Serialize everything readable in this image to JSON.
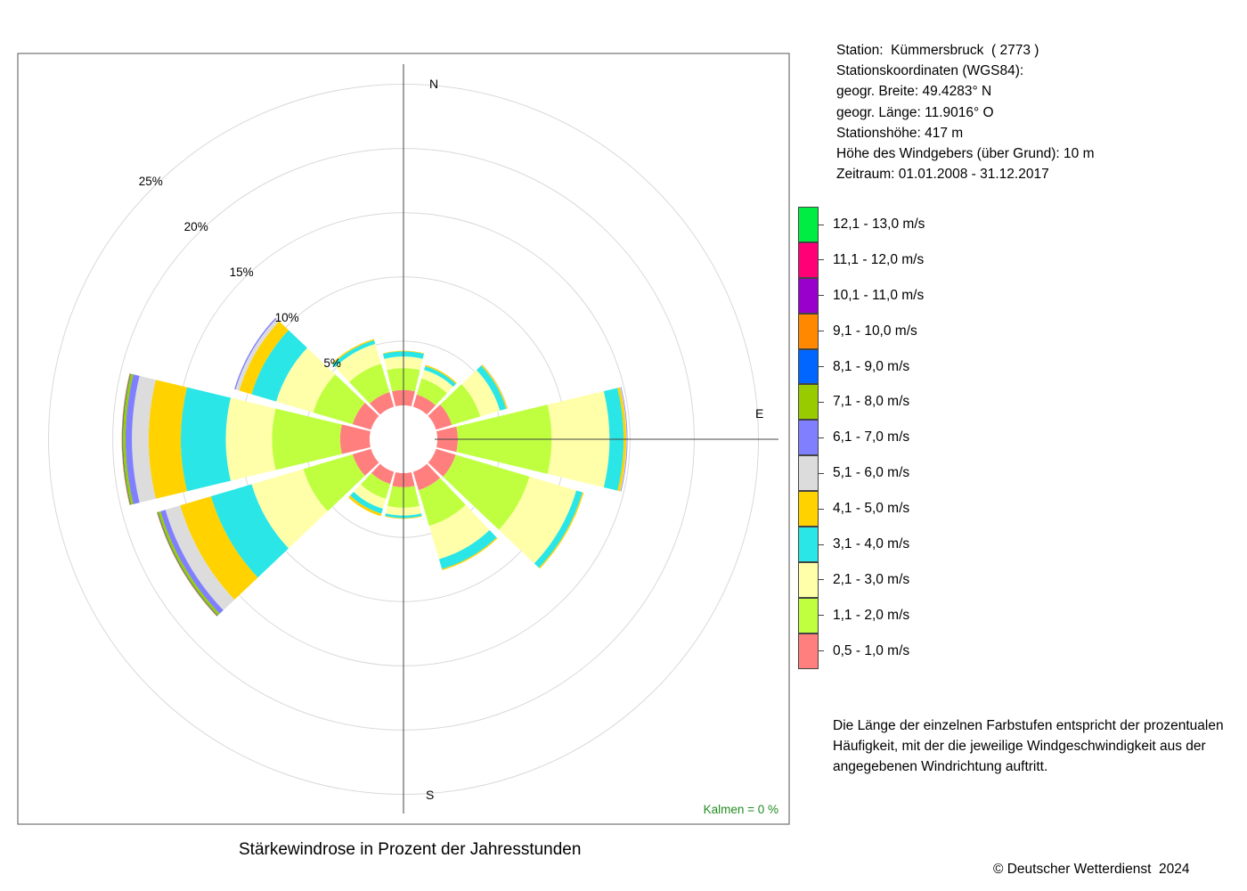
{
  "station_info": {
    "station": "Station:  Kümmersbruck  ( 2773 )",
    "coords_heading": "Stationskoordinaten (WGS84):",
    "latitude": "geogr. Breite: 49.4283° N",
    "longitude": "geogr. Länge: 11.9016° O",
    "elevation": "Stationshöhe: 417 m",
    "sensor_height": "Höhe des Windgebers (über Grund): 10 m",
    "period": "Zeitraum: 01.01.2008 - 31.12.2017"
  },
  "explanation": [
    "Die Länge der einzelnen Farbstufen entspricht der prozentualen",
    "Häufigkeit, mit der die jeweilige Windgeschwindigkeit aus der",
    "angegebenen Windrichtung auftritt."
  ],
  "footer": {
    "title": "Stärkewindrose in Prozent der Jahresstunden",
    "copyright": "© Deutscher Wetterdienst  2024"
  },
  "calm_label": "Kalmen  =  0 %",
  "chart_data": {
    "type": "wind-rose",
    "title": "Stärkewindrose in Prozent der Jahresstunden",
    "unit": "%",
    "ring_labels": [
      "5%",
      "10%",
      "15%",
      "20%",
      "25%"
    ],
    "ring_values": [
      5,
      10,
      15,
      20,
      25
    ],
    "compass_labels": {
      "N": "N",
      "E": "E",
      "S": "S"
    },
    "calm_percent": 0,
    "speed_classes": [
      {
        "label": "0,5 - 1,0 m/s",
        "color": "#FF7F7F"
      },
      {
        "label": "1,1 - 2,0 m/s",
        "color": "#BFFF3F"
      },
      {
        "label": "2,1 - 3,0 m/s",
        "color": "#FFFFAA"
      },
      {
        "label": "3,1 - 4,0 m/s",
        "color": "#2AE6E6"
      },
      {
        "label": "4,1 - 5,0 m/s",
        "color": "#FFD200"
      },
      {
        "label": "5,1 - 6,0 m/s",
        "color": "#DCDCDC"
      },
      {
        "label": "6,1 - 7,0 m/s",
        "color": "#8080FF"
      },
      {
        "label": "7,1 - 8,0 m/s",
        "color": "#99CC00"
      },
      {
        "label": "8,1 - 9,0 m/s",
        "color": "#0066FF"
      },
      {
        "label": "9,1 - 10,0 m/s",
        "color": "#FF8800"
      },
      {
        "label": "10,1 - 11,0 m/s",
        "color": "#9900CC"
      },
      {
        "label": "11,1 - 12,0 m/s",
        "color": "#FF0077"
      },
      {
        "label": "12,1 - 13,0 m/s",
        "color": "#00EE44"
      }
    ],
    "sectors": [
      {
        "direction_deg": 0,
        "values": [
          1.2,
          1.7,
          0.9,
          0.4,
          0.05
        ]
      },
      {
        "direction_deg": 30,
        "values": [
          1.0,
          1.3,
          0.7,
          0.3,
          0.1
        ]
      },
      {
        "direction_deg": 60,
        "values": [
          1.3,
          2.3,
          1.6,
          0.5,
          0.1,
          0.05
        ]
      },
      {
        "direction_deg": 90,
        "values": [
          1.6,
          7.3,
          4.5,
          1.1,
          0.2,
          0.05,
          0.05
        ]
      },
      {
        "direction_deg": 120,
        "values": [
          1.6,
          6.0,
          3.8,
          0.5,
          0.1
        ]
      },
      {
        "direction_deg": 150,
        "values": [
          1.5,
          2.9,
          2.7,
          0.8,
          0.1
        ]
      },
      {
        "direction_deg": 180,
        "values": [
          1.1,
          1.6,
          0.6,
          0.2,
          0.05
        ]
      },
      {
        "direction_deg": 210,
        "values": [
          1.0,
          1.2,
          0.8,
          0.4,
          0.2
        ]
      },
      {
        "direction_deg": 240,
        "values": [
          1.5,
          4.0,
          4.2,
          3.3,
          2.5,
          1.2,
          0.4,
          0.2,
          0.05,
          0.05
        ]
      },
      {
        "direction_deg": 270,
        "values": [
          2.3,
          5.3,
          3.6,
          3.5,
          2.5,
          1.3,
          0.5,
          0.2,
          0.05,
          0.05
        ]
      },
      {
        "direction_deg": 300,
        "values": [
          1.5,
          3.2,
          3.0,
          2.0,
          1.0,
          0.3,
          0.1
        ]
      },
      {
        "direction_deg": 330,
        "values": [
          1.2,
          2.3,
          1.6,
          0.3,
          0.1
        ]
      }
    ],
    "sector_width_deg": 27,
    "grid": true
  }
}
